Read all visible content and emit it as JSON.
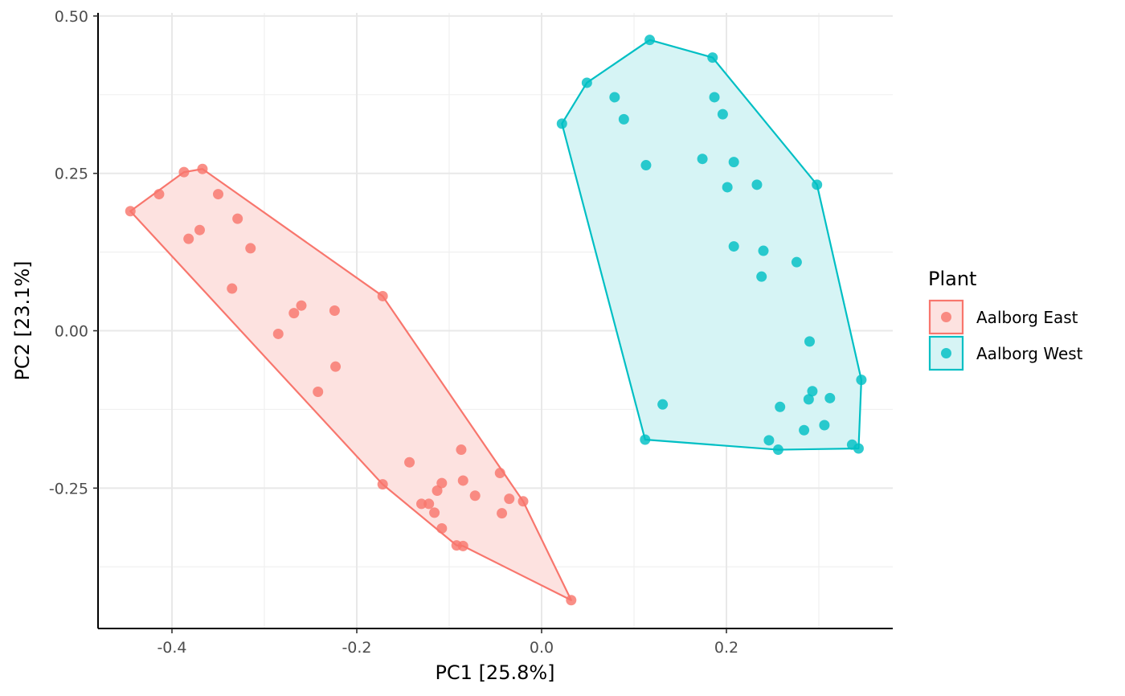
{
  "chart_data": {
    "type": "scatter",
    "xlabel": "PC1 [25.8%]",
    "ylabel": "PC2 [23.1%]",
    "xlim": [
      -0.48,
      0.38
    ],
    "ylim": [
      -0.473,
      0.505
    ],
    "x_ticks": [
      -0.4,
      -0.2,
      0.0,
      0.2
    ],
    "x_tick_labels": [
      "-0.4",
      "-0.2",
      "0.0",
      "0.2"
    ],
    "y_ticks": [
      0.5,
      0.25,
      0.0,
      -0.25
    ],
    "y_tick_labels": [
      "0.50",
      "0.25",
      "0.00",
      "-0.25"
    ],
    "grid": true,
    "hulls": true,
    "legend": {
      "title": "Plant",
      "position": "right",
      "entries": [
        "Aalborg East",
        "Aalborg West"
      ]
    },
    "series": [
      {
        "name": "Aalborg East",
        "color": "#F8766D",
        "fill": "#FDE2E0",
        "points": [
          [
            -0.445,
            0.19
          ],
          [
            -0.414,
            0.217
          ],
          [
            -0.387,
            0.252
          ],
          [
            -0.367,
            0.257
          ],
          [
            -0.35,
            0.217
          ],
          [
            -0.37,
            0.16
          ],
          [
            -0.382,
            0.146
          ],
          [
            -0.329,
            0.178
          ],
          [
            -0.315,
            0.131
          ],
          [
            -0.335,
            0.067
          ],
          [
            -0.172,
            0.055
          ],
          [
            -0.26,
            0.04
          ],
          [
            -0.268,
            0.028
          ],
          [
            -0.224,
            0.032
          ],
          [
            -0.285,
            -0.005
          ],
          [
            -0.223,
            -0.057
          ],
          [
            -0.242,
            -0.097
          ],
          [
            -0.143,
            -0.209
          ],
          [
            -0.087,
            -0.189
          ],
          [
            -0.045,
            -0.226
          ],
          [
            -0.172,
            -0.244
          ],
          [
            -0.108,
            -0.242
          ],
          [
            -0.085,
            -0.238
          ],
          [
            -0.113,
            -0.254
          ],
          [
            -0.072,
            -0.262
          ],
          [
            -0.035,
            -0.267
          ],
          [
            -0.02,
            -0.271
          ],
          [
            -0.13,
            -0.275
          ],
          [
            -0.122,
            -0.275
          ],
          [
            -0.116,
            -0.289
          ],
          [
            -0.043,
            -0.29
          ],
          [
            -0.108,
            -0.314
          ],
          [
            -0.092,
            -0.341
          ],
          [
            -0.085,
            -0.342
          ],
          [
            0.032,
            -0.428
          ]
        ],
        "hull": [
          [
            -0.445,
            0.19
          ],
          [
            -0.387,
            0.252
          ],
          [
            -0.367,
            0.257
          ],
          [
            -0.172,
            0.055
          ],
          [
            -0.02,
            -0.271
          ],
          [
            0.032,
            -0.428
          ],
          [
            -0.085,
            -0.342
          ],
          [
            -0.092,
            -0.341
          ],
          [
            -0.172,
            -0.244
          ]
        ]
      },
      {
        "name": "Aalborg West",
        "color": "#00BFC4",
        "fill": "#D6F4F5",
        "points": [
          [
            0.117,
            0.462
          ],
          [
            0.185,
            0.434
          ],
          [
            0.049,
            0.394
          ],
          [
            0.079,
            0.371
          ],
          [
            0.187,
            0.371
          ],
          [
            0.196,
            0.344
          ],
          [
            0.089,
            0.336
          ],
          [
            0.022,
            0.329
          ],
          [
            0.174,
            0.273
          ],
          [
            0.208,
            0.268
          ],
          [
            0.113,
            0.263
          ],
          [
            0.233,
            0.232
          ],
          [
            0.298,
            0.232
          ],
          [
            0.201,
            0.228
          ],
          [
            0.208,
            0.134
          ],
          [
            0.24,
            0.127
          ],
          [
            0.276,
            0.109
          ],
          [
            0.238,
            0.086
          ],
          [
            0.29,
            -0.017
          ],
          [
            0.346,
            -0.078
          ],
          [
            0.293,
            -0.096
          ],
          [
            0.312,
            -0.107
          ],
          [
            0.289,
            -0.109
          ],
          [
            0.131,
            -0.117
          ],
          [
            0.258,
            -0.121
          ],
          [
            0.306,
            -0.15
          ],
          [
            0.284,
            -0.158
          ],
          [
            0.112,
            -0.173
          ],
          [
            0.246,
            -0.174
          ],
          [
            0.336,
            -0.181
          ],
          [
            0.343,
            -0.187
          ],
          [
            0.256,
            -0.189
          ]
        ],
        "hull": [
          [
            0.117,
            0.462
          ],
          [
            0.185,
            0.434
          ],
          [
            0.298,
            0.232
          ],
          [
            0.346,
            -0.078
          ],
          [
            0.343,
            -0.187
          ],
          [
            0.256,
            -0.189
          ],
          [
            0.112,
            -0.173
          ],
          [
            0.022,
            0.329
          ],
          [
            0.049,
            0.394
          ]
        ]
      }
    ]
  }
}
